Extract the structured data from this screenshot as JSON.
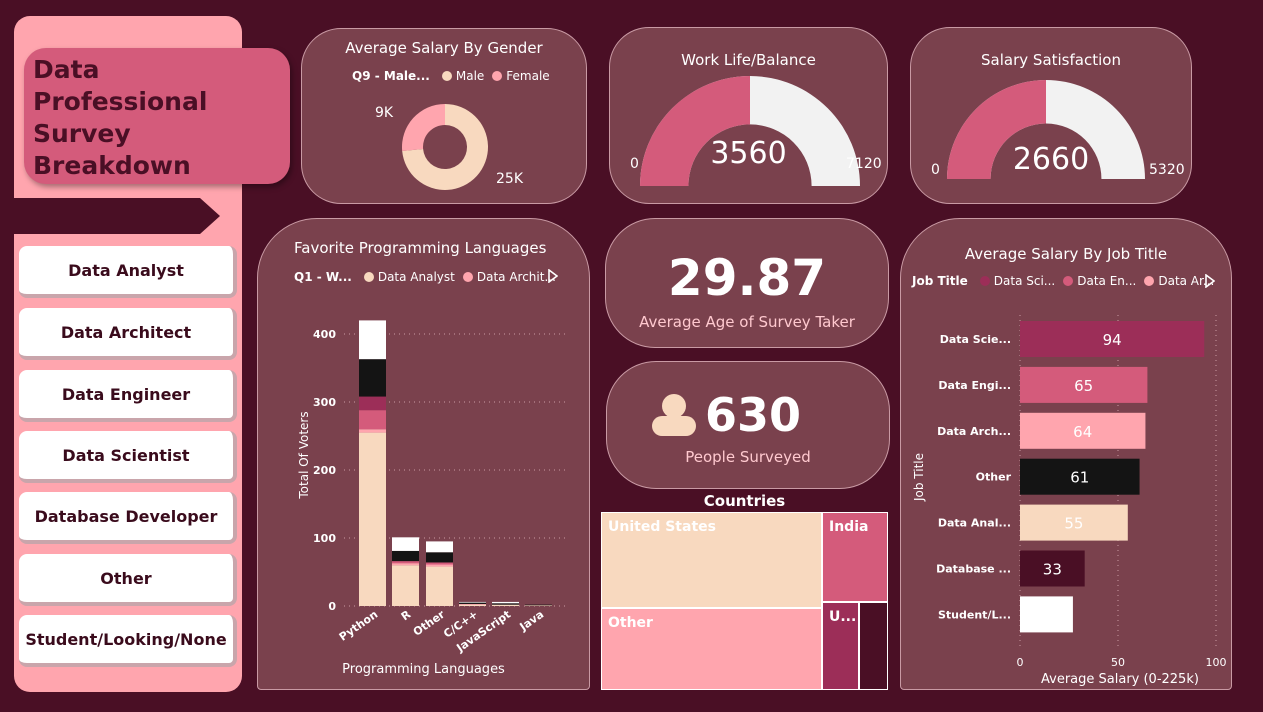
{
  "dashboard": {
    "title_lines": [
      "Data",
      "Professional",
      "Survey",
      "Breakdown"
    ]
  },
  "slicer": {
    "items": [
      "Data Analyst",
      "Data Architect",
      "Data Engineer",
      "Data Scientist",
      "Database Developer",
      "Other",
      "Student/Looking/None"
    ]
  },
  "gender_card": {
    "title": "Average Salary By Gender",
    "legend_title": "Q9 - Male...",
    "legend": [
      "Male",
      "Female"
    ],
    "label_female": "9K",
    "label_male": "25K",
    "colors": {
      "male": "#f8d9bf",
      "female": "#ffa5ae"
    },
    "chart_data": {
      "type": "pie",
      "categories": [
        "Male",
        "Female"
      ],
      "values": [
        25,
        9
      ]
    }
  },
  "worklife_card": {
    "title": "Work Life/Balance",
    "value": "3560",
    "min": "0",
    "max": "7120",
    "fraction": 0.5
  },
  "salary_sat_card": {
    "title": "Salary Satisfaction",
    "value": "2660",
    "min": "0",
    "max": "5320",
    "fraction": 0.5
  },
  "lang_card": {
    "title": "Favorite Programming Languages",
    "legend_title": "Q1 - W...",
    "legend": [
      "Data Analyst",
      "Data Archit..."
    ],
    "ylabel": "Total Of Voters",
    "xlabel": "Programming Languages",
    "yticks": [
      "0",
      "100",
      "200",
      "300",
      "400"
    ],
    "chart_data": {
      "type": "bar",
      "stacked": true,
      "categories": [
        "Python",
        "R",
        "Other",
        "C/C++",
        "JavaScript",
        "Java"
      ],
      "series": [
        {
          "name": "Data Analyst",
          "values": [
            255,
            60,
            58,
            2,
            2,
            1
          ],
          "color": "#f8d9bf"
        },
        {
          "name": "Data Archit...",
          "values": [
            5,
            3,
            3,
            1,
            0,
            0
          ],
          "color": "#ffa5ae"
        },
        {
          "values": [
            28,
            3,
            3,
            0,
            0,
            0
          ],
          "color": "#d45b7b"
        },
        {
          "values": [
            20,
            0,
            0,
            0,
            0,
            0
          ],
          "color": "#9c2e58"
        },
        {
          "values": [
            55,
            15,
            15,
            2,
            2,
            1
          ],
          "color": "#141414"
        },
        {
          "values": [
            57,
            20,
            16,
            1,
            2,
            0
          ],
          "color": "#ffffff"
        }
      ],
      "ylim": [
        0,
        420
      ]
    }
  },
  "age_card": {
    "value": "29.87",
    "label": "Average Age of Survey Taker"
  },
  "people_card": {
    "value": "630",
    "label": "People Surveyed"
  },
  "countries": {
    "title": "Countries",
    "items": [
      {
        "name": "United States",
        "color": "#f8d9bf"
      },
      {
        "name": "India",
        "color": "#d45b7b"
      },
      {
        "name": "Other",
        "color": "#ffa5ae"
      },
      {
        "name": "U...",
        "color": "#9c2e58"
      },
      {
        "name": "",
        "color": "#4a0f25"
      }
    ]
  },
  "jobtitle_card": {
    "title": "Average Salary By Job Title",
    "legend_title": "Job Title",
    "legend": [
      "Data Sci...",
      "Data En...",
      "Data Ar..."
    ],
    "ylabel": "Job Title",
    "xlabel": "Average Salary (0-225k)",
    "xticks": [
      "0",
      "50",
      "100"
    ],
    "chart_data": {
      "type": "bar",
      "orientation": "horizontal",
      "categories": [
        "Data Scie...",
        "Data Engi...",
        "Data Arch...",
        "Other",
        "Data Anal...",
        "Database ...",
        "Student/L..."
      ],
      "values": [
        94,
        65,
        64,
        61,
        55,
        33,
        27
      ],
      "data_labels": [
        "94",
        "65",
        "64",
        "61",
        "55",
        "33",
        ""
      ],
      "colors": [
        "#9c2e58",
        "#d45b7b",
        "#ffa5ae",
        "#141414",
        "#f8d9bf",
        "#4a0f25",
        "#ffffff"
      ],
      "label_colors": [
        "#ffffff",
        "#ffffff",
        "#ffffff",
        "#ffffff",
        "#ffffff",
        "#ffffff",
        "#000000"
      ],
      "xlim": [
        0,
        100
      ]
    }
  }
}
